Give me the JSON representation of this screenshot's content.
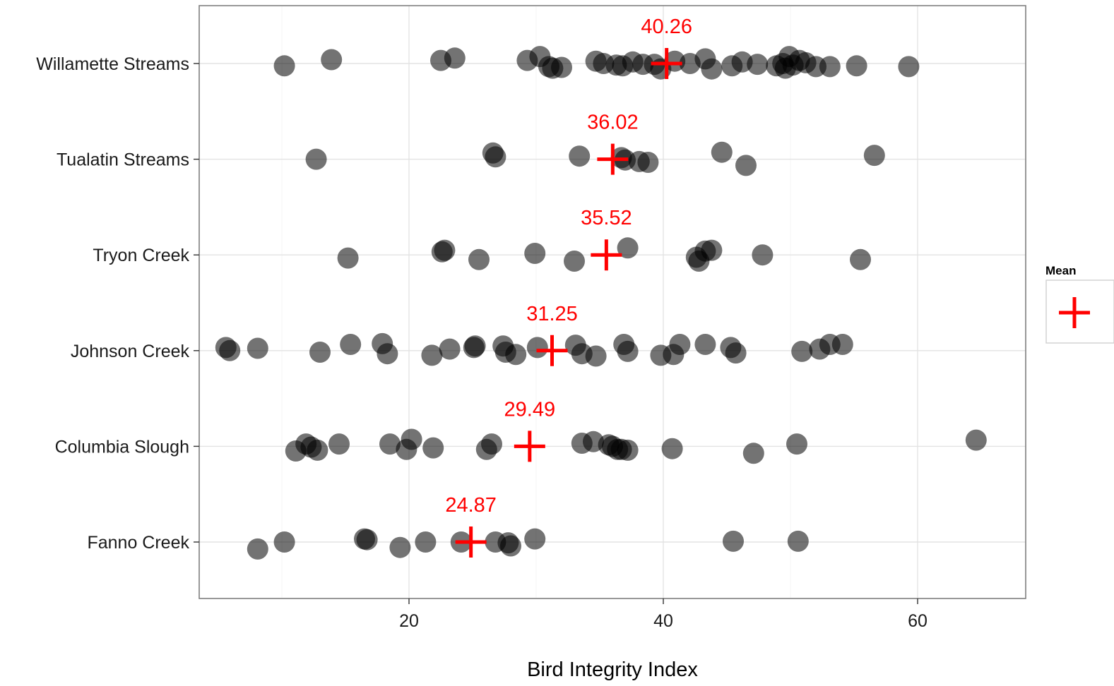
{
  "chart_data": {
    "type": "scatter",
    "title": "",
    "xlabel": "Bird Integrity Index",
    "ylabel": "",
    "xlim": [
      3.5,
      68.5
    ],
    "x_ticks": [
      20,
      40,
      60
    ],
    "grid": true,
    "legend": {
      "title": "Mean",
      "placement": "right",
      "symbol": "plus",
      "color": "#ff0000"
    },
    "point_color": "#000000",
    "point_opacity": 0.55,
    "mean_color": "#ff0000",
    "categories": [
      "Willamette Streams",
      "Tualatin Streams",
      "Tryon Creek",
      "Johnson Creek",
      "Columbia Slough",
      "Fanno Creek"
    ],
    "series": [
      {
        "category": "Willamette Streams",
        "mean": 40.26,
        "mean_label": "40.26",
        "points": [
          {
            "x": 10.2,
            "jitter": -0.3
          },
          {
            "x": 13.9,
            "jitter": 0.5
          },
          {
            "x": 22.5,
            "jitter": 0.4
          },
          {
            "x": 23.6,
            "jitter": 0.7
          },
          {
            "x": 29.3,
            "jitter": 0.4
          },
          {
            "x": 30.3,
            "jitter": 0.9
          },
          {
            "x": 31.0,
            "jitter": -0.4
          },
          {
            "x": 31.3,
            "jitter": -0.6
          },
          {
            "x": 32.0,
            "jitter": -0.5
          },
          {
            "x": 34.7,
            "jitter": 0.3
          },
          {
            "x": 35.3,
            "jitter": 0.0
          },
          {
            "x": 36.3,
            "jitter": -0.2
          },
          {
            "x": 36.8,
            "jitter": -0.3
          },
          {
            "x": 37.6,
            "jitter": 0.2
          },
          {
            "x": 38.4,
            "jitter": -0.1
          },
          {
            "x": 39.3,
            "jitter": -0.1
          },
          {
            "x": 39.8,
            "jitter": -0.7
          },
          {
            "x": 40.9,
            "jitter": 0.3
          },
          {
            "x": 42.1,
            "jitter": 0.0
          },
          {
            "x": 43.3,
            "jitter": 0.6
          },
          {
            "x": 43.8,
            "jitter": -0.7
          },
          {
            "x": 45.4,
            "jitter": -0.3
          },
          {
            "x": 46.2,
            "jitter": 0.2
          },
          {
            "x": 47.4,
            "jitter": -0.1
          },
          {
            "x": 48.9,
            "jitter": -0.3
          },
          {
            "x": 49.4,
            "jitter": 0.0
          },
          {
            "x": 49.6,
            "jitter": -0.6
          },
          {
            "x": 49.9,
            "jitter": 0.9
          },
          {
            "x": 50.2,
            "jitter": -0.2
          },
          {
            "x": 50.7,
            "jitter": 0.4
          },
          {
            "x": 51.2,
            "jitter": 0.1
          },
          {
            "x": 52.0,
            "jitter": -0.4
          },
          {
            "x": 53.1,
            "jitter": -0.4
          },
          {
            "x": 55.2,
            "jitter": -0.3
          },
          {
            "x": 59.3,
            "jitter": -0.4
          }
        ]
      },
      {
        "category": "Tualatin Streams",
        "mean": 36.02,
        "mean_label": "36.02",
        "points": [
          {
            "x": 12.7,
            "jitter": 0.0
          },
          {
            "x": 26.6,
            "jitter": 0.8
          },
          {
            "x": 26.8,
            "jitter": 0.3
          },
          {
            "x": 33.4,
            "jitter": 0.4
          },
          {
            "x": 36.7,
            "jitter": 0.2
          },
          {
            "x": 37.0,
            "jitter": -0.1
          },
          {
            "x": 38.1,
            "jitter": -0.3
          },
          {
            "x": 38.8,
            "jitter": -0.4
          },
          {
            "x": 44.6,
            "jitter": 0.9
          },
          {
            "x": 46.5,
            "jitter": -0.8
          },
          {
            "x": 56.6,
            "jitter": 0.5
          }
        ]
      },
      {
        "category": "Tryon Creek",
        "mean": 35.52,
        "mean_label": "35.52",
        "points": [
          {
            "x": 15.2,
            "jitter": -0.4
          },
          {
            "x": 22.6,
            "jitter": 0.4
          },
          {
            "x": 22.8,
            "jitter": 0.6
          },
          {
            "x": 25.5,
            "jitter": -0.6
          },
          {
            "x": 29.9,
            "jitter": 0.2
          },
          {
            "x": 33.0,
            "jitter": -0.8
          },
          {
            "x": 37.2,
            "jitter": 0.9
          },
          {
            "x": 42.6,
            "jitter": -0.3
          },
          {
            "x": 42.8,
            "jitter": -0.8
          },
          {
            "x": 43.3,
            "jitter": 0.5
          },
          {
            "x": 43.8,
            "jitter": 0.6
          },
          {
            "x": 47.8,
            "jitter": 0.0
          },
          {
            "x": 55.5,
            "jitter": -0.6
          }
        ]
      },
      {
        "category": "Johnson Creek",
        "mean": 31.25,
        "mean_label": "31.25",
        "points": [
          {
            "x": 5.6,
            "jitter": 0.4
          },
          {
            "x": 5.9,
            "jitter": 0.0
          },
          {
            "x": 8.1,
            "jitter": 0.3
          },
          {
            "x": 13.0,
            "jitter": -0.2
          },
          {
            "x": 15.4,
            "jitter": 0.8
          },
          {
            "x": 17.9,
            "jitter": 0.9
          },
          {
            "x": 18.3,
            "jitter": -0.4
          },
          {
            "x": 21.8,
            "jitter": -0.6
          },
          {
            "x": 23.2,
            "jitter": 0.2
          },
          {
            "x": 25.1,
            "jitter": 0.4
          },
          {
            "x": 25.2,
            "jitter": 0.6
          },
          {
            "x": 27.4,
            "jitter": 0.6
          },
          {
            "x": 27.6,
            "jitter": -0.2
          },
          {
            "x": 28.4,
            "jitter": -0.5
          },
          {
            "x": 30.1,
            "jitter": 0.4
          },
          {
            "x": 33.1,
            "jitter": 0.7
          },
          {
            "x": 33.6,
            "jitter": -0.4
          },
          {
            "x": 34.7,
            "jitter": -0.7
          },
          {
            "x": 36.9,
            "jitter": 0.8
          },
          {
            "x": 37.2,
            "jitter": -0.1
          },
          {
            "x": 39.8,
            "jitter": -0.6
          },
          {
            "x": 40.8,
            "jitter": -0.5
          },
          {
            "x": 41.3,
            "jitter": 0.8
          },
          {
            "x": 43.3,
            "jitter": 0.8
          },
          {
            "x": 45.3,
            "jitter": 0.4
          },
          {
            "x": 45.7,
            "jitter": -0.3
          },
          {
            "x": 50.9,
            "jitter": -0.1
          },
          {
            "x": 52.3,
            "jitter": 0.2
          },
          {
            "x": 53.1,
            "jitter": 0.8
          },
          {
            "x": 54.1,
            "jitter": 0.8
          }
        ]
      },
      {
        "category": "Columbia Slough",
        "mean": 29.49,
        "mean_label": "29.49",
        "points": [
          {
            "x": 11.1,
            "jitter": -0.6
          },
          {
            "x": 11.9,
            "jitter": 0.3
          },
          {
            "x": 12.3,
            "jitter": -0.1
          },
          {
            "x": 12.8,
            "jitter": -0.5
          },
          {
            "x": 14.5,
            "jitter": 0.3
          },
          {
            "x": 18.5,
            "jitter": 0.3
          },
          {
            "x": 19.8,
            "jitter": -0.4
          },
          {
            "x": 20.2,
            "jitter": 0.9
          },
          {
            "x": 21.9,
            "jitter": -0.2
          },
          {
            "x": 26.1,
            "jitter": -0.4
          },
          {
            "x": 26.5,
            "jitter": 0.3
          },
          {
            "x": 33.6,
            "jitter": 0.4
          },
          {
            "x": 34.5,
            "jitter": 0.6
          },
          {
            "x": 35.7,
            "jitter": 0.2
          },
          {
            "x": 36.0,
            "jitter": 0.0
          },
          {
            "x": 36.4,
            "jitter": -0.4
          },
          {
            "x": 36.7,
            "jitter": -0.4
          },
          {
            "x": 37.2,
            "jitter": -0.5
          },
          {
            "x": 40.7,
            "jitter": -0.3
          },
          {
            "x": 47.1,
            "jitter": -0.9
          },
          {
            "x": 50.5,
            "jitter": 0.3
          },
          {
            "x": 64.6,
            "jitter": 0.8
          }
        ]
      },
      {
        "category": "Fanno Creek",
        "mean": 24.87,
        "mean_label": "24.87",
        "points": [
          {
            "x": 8.1,
            "jitter": -0.9
          },
          {
            "x": 10.2,
            "jitter": 0.0
          },
          {
            "x": 16.5,
            "jitter": 0.4
          },
          {
            "x": 16.7,
            "jitter": 0.3
          },
          {
            "x": 19.3,
            "jitter": -0.7
          },
          {
            "x": 21.3,
            "jitter": 0.0
          },
          {
            "x": 24.1,
            "jitter": 0.0
          },
          {
            "x": 26.8,
            "jitter": 0.0
          },
          {
            "x": 27.8,
            "jitter": -0.1
          },
          {
            "x": 28.0,
            "jitter": -0.5
          },
          {
            "x": 29.9,
            "jitter": 0.4
          },
          {
            "x": 45.5,
            "jitter": 0.1
          },
          {
            "x": 50.6,
            "jitter": 0.1
          }
        ]
      }
    ]
  }
}
